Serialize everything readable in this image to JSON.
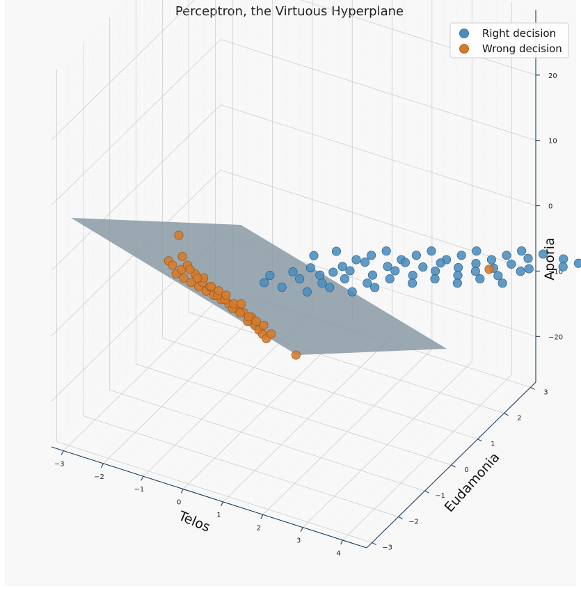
{
  "chart_data": {
    "type": "scatter",
    "projection": "3d",
    "title": "Perceptron, the Virtuous Hyperplane",
    "xlabel": "Telos",
    "ylabel": "Eudamonia",
    "zlabel": "Aporia",
    "xlim": [
      -3.3,
      4.6
    ],
    "ylim": [
      -3.2,
      3.2
    ],
    "zlim": [
      -27,
      30
    ],
    "x_ticks": [
      "−3",
      "−2",
      "−1",
      "0",
      "1",
      "2",
      "3",
      "4"
    ],
    "y_ticks": [
      "−3",
      "−2",
      "−1",
      "0",
      "1",
      "2",
      "3"
    ],
    "z_ticks": [
      "−20",
      "−10",
      "0",
      "10",
      "20"
    ],
    "grid": true,
    "legend_position": "top-right",
    "colors": {
      "right": "#4a8dbf",
      "wrong": "#d67a2a",
      "plane": "#8a9aa4",
      "panel": "#f8f8f8",
      "axis": "#1d3b5c"
    },
    "plane": {
      "description": "decision hyperplane"
    },
    "series": [
      {
        "name": "Right decision",
        "color": "#4a8dbf",
        "points": [
          [
            1.2,
            -1.5,
            2
          ],
          [
            1.5,
            -1.2,
            3
          ],
          [
            1.8,
            -1.0,
            1
          ],
          [
            2.0,
            -0.8,
            2
          ],
          [
            2.2,
            -0.6,
            3
          ],
          [
            2.4,
            -0.4,
            1
          ],
          [
            2.6,
            -0.2,
            2
          ],
          [
            2.8,
            0.0,
            3
          ],
          [
            3.0,
            0.2,
            1
          ],
          [
            3.2,
            0.4,
            2
          ],
          [
            3.4,
            0.6,
            3
          ],
          [
            3.6,
            0.8,
            1
          ],
          [
            3.8,
            1.0,
            2
          ],
          [
            4.0,
            1.2,
            3
          ],
          [
            1.3,
            -0.6,
            0
          ],
          [
            1.6,
            -0.3,
            1
          ],
          [
            1.9,
            0.0,
            0
          ],
          [
            2.1,
            0.3,
            1
          ],
          [
            2.3,
            0.6,
            0
          ],
          [
            2.5,
            0.9,
            1
          ],
          [
            2.7,
            1.2,
            0
          ],
          [
            2.9,
            1.5,
            1
          ],
          [
            3.1,
            1.8,
            0
          ],
          [
            3.3,
            2.1,
            1
          ],
          [
            3.5,
            2.4,
            0
          ],
          [
            1.0,
            -0.9,
            -2
          ],
          [
            1.4,
            -0.5,
            -1
          ],
          [
            1.7,
            -0.2,
            -2
          ],
          [
            2.0,
            0.1,
            -1
          ],
          [
            2.2,
            0.4,
            -2
          ],
          [
            2.5,
            0.7,
            -1
          ],
          [
            2.8,
            1.0,
            -2
          ],
          [
            3.0,
            1.3,
            -1
          ],
          [
            3.3,
            1.6,
            -2
          ],
          [
            3.6,
            1.9,
            -1
          ],
          [
            0.8,
            -1.3,
            -3
          ],
          [
            1.1,
            -1.0,
            -4
          ],
          [
            1.4,
            -0.7,
            -3
          ],
          [
            1.7,
            -0.4,
            -4
          ],
          [
            2.0,
            -0.1,
            -3
          ],
          [
            2.3,
            0.2,
            -4
          ],
          [
            2.6,
            0.5,
            -3
          ],
          [
            2.9,
            0.8,
            -4
          ],
          [
            3.2,
            1.1,
            -3
          ],
          [
            3.5,
            1.4,
            -4
          ],
          [
            0.6,
            -1.6,
            -5
          ],
          [
            0.9,
            -1.2,
            -6
          ],
          [
            1.2,
            -0.9,
            -5
          ],
          [
            1.5,
            -0.6,
            -6
          ],
          [
            1.8,
            -0.3,
            -5
          ],
          [
            4.1,
            2.6,
            2
          ],
          [
            4.3,
            2.8,
            1
          ],
          [
            3.9,
            2.2,
            3
          ],
          [
            3.7,
            2.0,
            2
          ],
          [
            4.2,
            2.4,
            0
          ],
          [
            0.5,
            -1.0,
            -1
          ],
          [
            0.7,
            -0.7,
            0
          ],
          [
            1.0,
            -0.4,
            -1
          ],
          [
            0.4,
            -1.9,
            -4
          ],
          [
            0.3,
            -1.5,
            -2
          ]
        ]
      },
      {
        "name": "Wrong decision",
        "color": "#d67a2a",
        "points": [
          [
            -1.2,
            -2.0,
            -2
          ],
          [
            -1.1,
            -1.9,
            -3
          ],
          [
            -1.0,
            -1.8,
            -4
          ],
          [
            -0.9,
            -1.7,
            -5
          ],
          [
            -0.8,
            -1.6,
            -6
          ],
          [
            -0.7,
            -1.5,
            -7
          ],
          [
            -0.6,
            -1.4,
            -8
          ],
          [
            -0.5,
            -1.3,
            -9
          ],
          [
            -0.4,
            -1.2,
            -10
          ],
          [
            -0.3,
            -1.1,
            -11
          ],
          [
            -1.3,
            -2.1,
            -1
          ],
          [
            -1.25,
            -2.0,
            0
          ],
          [
            -1.15,
            -1.95,
            1
          ],
          [
            -1.05,
            -1.85,
            -1
          ],
          [
            -0.95,
            -1.75,
            -3
          ],
          [
            -0.85,
            -1.65,
            -4
          ],
          [
            -0.75,
            -1.55,
            -6
          ],
          [
            -0.65,
            -1.45,
            -7
          ],
          [
            -0.55,
            -1.35,
            -9
          ],
          [
            -0.45,
            -1.25,
            -10
          ],
          [
            -0.35,
            -1.15,
            -12
          ],
          [
            -0.25,
            -1.05,
            -13
          ],
          [
            -0.2,
            -1.0,
            -14
          ],
          [
            -0.15,
            -0.95,
            -15
          ],
          [
            -0.1,
            -0.9,
            -16
          ],
          [
            -1.4,
            -2.2,
            2
          ],
          [
            -1.35,
            -2.15,
            1
          ],
          [
            -1.2,
            -2.05,
            3
          ],
          [
            -1.1,
            -1.95,
            0
          ],
          [
            -0.9,
            -1.8,
            -2
          ],
          [
            -0.7,
            -1.6,
            -5
          ],
          [
            -0.5,
            -1.4,
            -8
          ],
          [
            -0.3,
            -1.2,
            -11
          ],
          [
            -0.1,
            -1.0,
            -13
          ],
          [
            0.0,
            -0.9,
            -15
          ],
          [
            -1.0,
            -1.85,
            -2
          ],
          [
            -0.8,
            -1.7,
            -4
          ],
          [
            -0.6,
            -1.5,
            -6
          ],
          [
            -0.4,
            -1.3,
            -8
          ],
          [
            -0.2,
            -1.1,
            -12
          ],
          [
            -1.3,
            -2.0,
            8
          ],
          [
            0.4,
            -0.7,
            -20
          ],
          [
            2.9,
            2.0,
            0
          ]
        ]
      }
    ]
  }
}
